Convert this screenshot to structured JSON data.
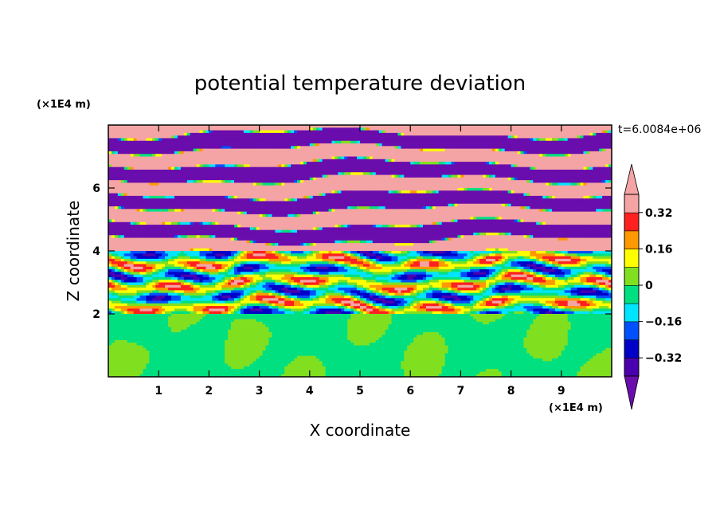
{
  "chart_data": {
    "type": "heatmap",
    "title": "potential temperature deviation",
    "xlabel": "X coordinate",
    "ylabel": "Z coordinate",
    "x_unit": "(×1E4 m)",
    "y_unit": "(×1E4 m)",
    "time_label": "t=6.0084e+06",
    "xlim": [
      0,
      10
    ],
    "ylim": [
      0,
      8
    ],
    "x_ticks": [
      1,
      2,
      3,
      4,
      5,
      6,
      7,
      8,
      9
    ],
    "x_tick_labels": [
      "1",
      "2",
      "3",
      "4",
      "5",
      "6",
      "7",
      "8",
      "9"
    ],
    "y_ticks": [
      2,
      4,
      6
    ],
    "y_tick_labels": [
      "2",
      "4",
      "6"
    ],
    "colorbar": {
      "levels": [
        -0.4,
        -0.32,
        -0.24,
        -0.16,
        -0.08,
        0,
        0.08,
        0.16,
        0.24,
        0.32,
        0.4
      ],
      "tick_values": [
        -0.32,
        -0.16,
        0,
        0.16,
        0.32
      ],
      "tick_labels": [
        "−0.32",
        "−0.16",
        "0",
        "0.16",
        "0.32"
      ],
      "colors": [
        "#6a0dad",
        "#4b00b0",
        "#0000c8",
        "#0050ff",
        "#00e5ff",
        "#00e080",
        "#80e020",
        "#ffff00",
        "#ff9900",
        "#ff2020",
        "#f4a4a4"
      ],
      "extend": "both"
    },
    "regions": [
      {
        "description_value": "lower layer z<2: values ~0 to 0.08",
        "zmin": 0,
        "zmax": 2,
        "values": [
          0,
          0.08
        ]
      },
      {
        "description_value": "mid layer 2<z<4: mixed -0.32 to 0.32",
        "zmin": 2,
        "zmax": 4,
        "values": [
          -0.32,
          0.32
        ]
      },
      {
        "description_value": "upper layer z>4: alternating bands <-0.4 and >0.4",
        "zmin": 4,
        "zmax": 8,
        "values": [
          -0.4,
          0.4
        ]
      }
    ]
  }
}
